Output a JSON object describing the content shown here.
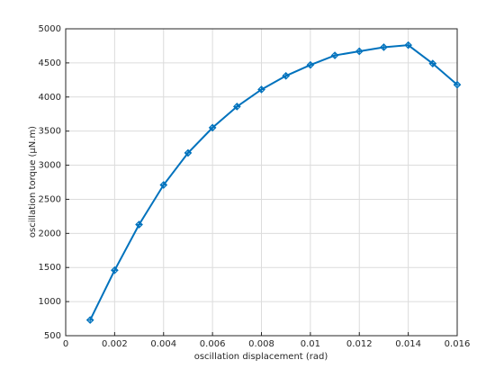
{
  "chart_data": {
    "type": "line",
    "x_label": "oscillation displacement (rad)",
    "y_label": "oscillation torque (μN.m)",
    "x": [
      0.001,
      0.002,
      0.003,
      0.004,
      0.005,
      0.006,
      0.007,
      0.008,
      0.009,
      0.01,
      0.011,
      0.012,
      0.013,
      0.014,
      0.015,
      0.016
    ],
    "series": [
      {
        "color": "#0072bd",
        "values": [
          730,
          1460,
          2130,
          2710,
          3180,
          3550,
          3860,
          4110,
          4310,
          4470,
          4610,
          4670,
          4730,
          4760,
          4490,
          4180
        ]
      }
    ],
    "xlim": [
      0,
      0.016
    ],
    "xticks": [
      0,
      0.002,
      0.004,
      0.006,
      0.008,
      0.01,
      0.012,
      0.014,
      0.016
    ],
    "ylim": [
      500,
      5000
    ],
    "yticks": [
      500,
      1000,
      1500,
      2000,
      2500,
      3000,
      3500,
      4000,
      4500,
      5000
    ],
    "grid": true
  }
}
